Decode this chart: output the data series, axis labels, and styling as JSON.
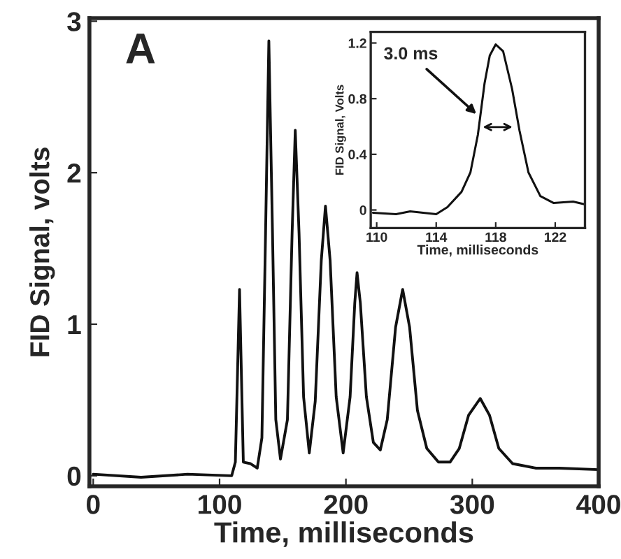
{
  "chart_data": [
    {
      "type": "line",
      "xlabel": "Time, milliseconds",
      "ylabel": "FID Signal, volts",
      "annotations": [
        "A"
      ],
      "xlim": [
        -3,
        400
      ],
      "ylim": [
        -0.07,
        3.02
      ],
      "xticks": [
        0,
        100,
        200,
        300,
        400
      ],
      "yticks": [
        0,
        1,
        2,
        3
      ],
      "grid": false,
      "legend": false,
      "marker": "none",
      "line_style": "solid",
      "series": [
        {
          "color": "#111111",
          "x": [
            0,
            37.9,
            74.6,
            109.6,
            112.5,
            115.8,
            118.8,
            124.3,
            129.8,
            133.5,
            136.4,
            139,
            141.9,
            144.5,
            148.2,
            153.7,
            157.4,
            159.9,
            162.9,
            166.5,
            171,
            175.7,
            180.5,
            183.8,
            187.5,
            192.3,
            197.8,
            203.3,
            207,
            208.8,
            211.4,
            216.2,
            221.7,
            227.2,
            232.7,
            239.3,
            244.9,
            250.4,
            256.6,
            264,
            273.2,
            282.4,
            289.7,
            297.1,
            306.3,
            313.6,
            321,
            331.9,
            350.4,
            368.8,
            400
          ],
          "values": [
            0.01,
            -0.01,
            0.01,
            0,
            0.09,
            1.23,
            0.09,
            0.08,
            0.05,
            0.25,
            1.6,
            2.87,
            1.6,
            0.37,
            0.11,
            0.37,
            1.6,
            2.28,
            1.6,
            0.52,
            0.15,
            0.49,
            1.42,
            1.78,
            1.42,
            0.52,
            0.15,
            0.52,
            1.14,
            1.34,
            1.14,
            0.52,
            0.22,
            0.17,
            0.37,
            0.98,
            1.23,
            0.98,
            0.43,
            0.18,
            0.09,
            0.09,
            0.18,
            0.4,
            0.51,
            0.4,
            0.18,
            0.08,
            0.05,
            0.05,
            0.04
          ]
        }
      ]
    },
    {
      "type": "line",
      "xlabel": "Time, milliseconds",
      "ylabel": "FID Signal, Volts",
      "annotations": [
        {
          "text": "3.0 ms",
          "x": 116.8,
          "y": 0.68
        }
      ],
      "xlim": [
        109.6,
        124
      ],
      "ylim": [
        -0.13,
        1.28
      ],
      "xticks": [
        110,
        114,
        118,
        122
      ],
      "yticks": [
        0,
        0.4,
        0.8,
        1.2
      ],
      "grid": false,
      "legend": false,
      "marker": "none",
      "line_style": "solid",
      "series": [
        {
          "color": "#111111",
          "x": [
            109.75,
            111.3,
            112.25,
            114,
            114.75,
            115.7,
            116.3,
            116.8,
            117.25,
            117.6,
            118,
            118.5,
            119.1,
            119.6,
            120.2,
            121,
            121.9,
            123.2,
            124
          ],
          "values": [
            -0.02,
            -0.03,
            -0.01,
            -0.03,
            0.02,
            0.13,
            0.27,
            0.54,
            0.91,
            1.11,
            1.19,
            1.14,
            0.87,
            0.57,
            0.27,
            0.1,
            0.05,
            0.06,
            0.04
          ]
        }
      ]
    }
  ]
}
